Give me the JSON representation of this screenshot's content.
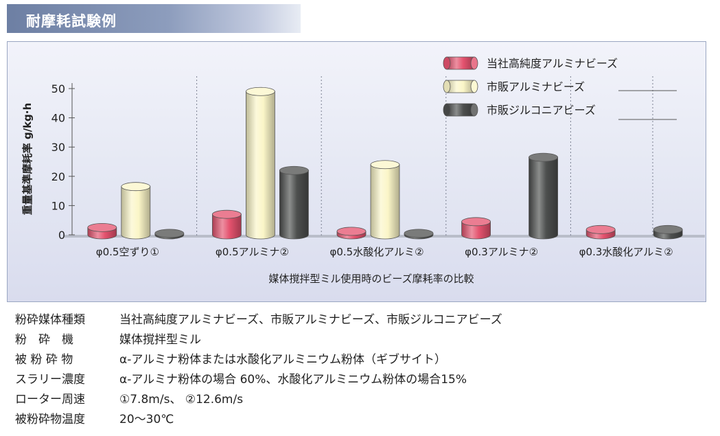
{
  "title": "耐摩耗試験例",
  "chart_data": {
    "type": "bar",
    "ylabel": "重量基準摩耗率 g/kg·h",
    "xlabel": "媒体撹拌型ミル使用時のビーズ摩耗率の比較",
    "ylim": [
      0,
      50
    ],
    "yticks": [
      0,
      10,
      20,
      30,
      40,
      50
    ],
    "categories": [
      "φ0.5空ずり①",
      "φ0.5アルミナ②",
      "φ0.5水酸化アルミ②",
      "φ0.3アルミナ②",
      "φ0.3水酸化アルミ②"
    ],
    "series": [
      {
        "name": "当社高純度アルミナビーズ",
        "color": "#e4526e",
        "values": [
          2.5,
          7.0,
          1.2,
          4.5,
          1.8
        ]
      },
      {
        "name": "市販アルミナビーズ",
        "color": "#fbf6c8",
        "values": [
          16.5,
          49.0,
          24.0,
          null,
          null
        ]
      },
      {
        "name": "市販ジルコニアビーズ",
        "color": "#4d4f4e",
        "values": [
          0.5,
          22.0,
          0.5,
          26.5,
          1.8
        ]
      }
    ],
    "legend_position": "top-right",
    "grid": false
  },
  "specs": [
    {
      "label": "粉砕媒体種類",
      "value": "当社高純度アルミナビーズ、市販アルミナビーズ、市販ジルコニアビーズ"
    },
    {
      "label": "粉　砕　機",
      "value": "媒体撹拌型ミル"
    },
    {
      "label": "被 粉 砕 物",
      "value": "α-アルミナ粉体または水酸化アルミニウム粉体（ギブサイト）"
    },
    {
      "label": "スラリー濃度",
      "value": "α-アルミナ粉体の場合 60%、水酸化アルミニウム粉体の場合15%"
    },
    {
      "label": "ローター周速",
      "value": "①7.8m/s、 ②12.6m/s"
    },
    {
      "label": "被粉砕物温度",
      "value": "20〜30℃"
    }
  ]
}
